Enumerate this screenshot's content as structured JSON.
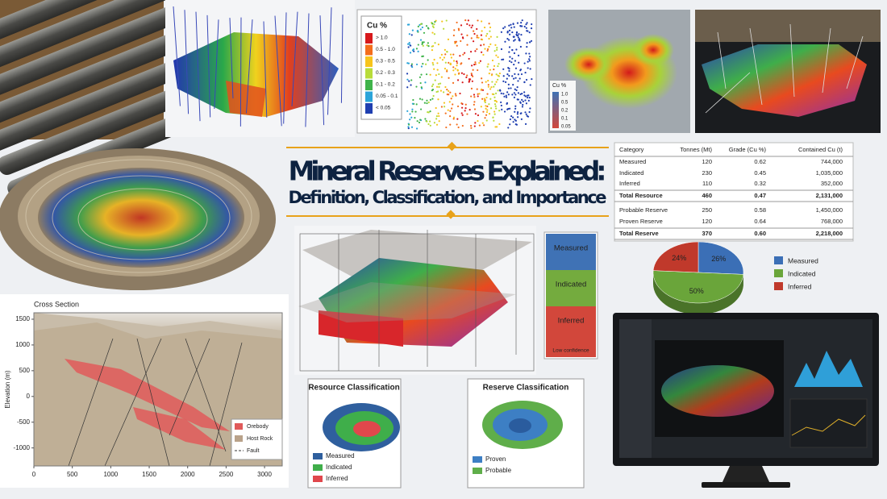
{
  "title": "Mineral Reserves Explained:",
  "subtitle": "Definition, Classification, and Importance",
  "grade_legend": {
    "title": "Cu %",
    "items": [
      {
        "label": "> 1.0",
        "color": "#d7191c"
      },
      {
        "label": "0.5 - 1.0",
        "color": "#f46d1b"
      },
      {
        "label": "0.3 - 0.5",
        "color": "#f7c41b"
      },
      {
        "label": "0.2 - 0.3",
        "color": "#b8dc3a"
      },
      {
        "label": "0.1 - 0.2",
        "color": "#3fb34a"
      },
      {
        "label": "0.05 - 0.1",
        "color": "#2ba4d9"
      },
      {
        "label": "< 0.05",
        "color": "#1f3fb0"
      }
    ]
  },
  "map_legend": {
    "title": "Cu %",
    "items": [
      "1.0",
      "0.5",
      "0.2",
      "0.1",
      "0.05"
    ]
  },
  "table": {
    "header": [
      "Category",
      "Tonnes (Mt)",
      "Grade (Cu %)",
      "Contained Cu (t)"
    ],
    "rows": [
      [
        "Measured",
        "120",
        "0.62",
        "744,000"
      ],
      [
        "Indicated",
        "230",
        "0.45",
        "1,035,000"
      ],
      [
        "Inferred",
        "110",
        "0.32",
        "352,000"
      ],
      [
        "Total Resource",
        "460",
        "0.47",
        "2,131,000"
      ],
      [
        "Probable Reserve",
        "250",
        "0.58",
        "1,450,000"
      ],
      [
        "Proven Reserve",
        "120",
        "0.64",
        "768,000"
      ],
      [
        "Total Reserve",
        "370",
        "0.60",
        "2,218,000"
      ]
    ]
  },
  "pie": {
    "type": "pie",
    "categories": [
      "Measured",
      "Indicated",
      "Inferred"
    ],
    "values": [
      26,
      50,
      24
    ],
    "value_labels": [
      "26%",
      "50%",
      "24%"
    ],
    "colors": [
      "#3b6fb6",
      "#6aa53a",
      "#c0392b"
    ]
  },
  "confidence": {
    "levels": [
      "Measured",
      "Indicated",
      "Inferred"
    ],
    "colors": [
      "#3f72b5",
      "#74ab3e",
      "#d2473b"
    ],
    "note": "Low confidence"
  },
  "cross_section": {
    "type": "area",
    "title": "Cross Section",
    "ylabel": "Elevation (m)",
    "xlim": [
      0,
      3230
    ],
    "ylim": [
      -1350,
      1625
    ],
    "xticks": [
      0,
      500,
      1000,
      1500,
      2000,
      2500,
      3000
    ],
    "yticks": [
      1500,
      1000,
      500,
      0,
      -500,
      -1000
    ],
    "legend": [
      {
        "name": "Orebody",
        "color": "#e05a5a"
      },
      {
        "name": "Host Rock",
        "color": "#b9a28a"
      },
      {
        "name": "Fault",
        "color": "#333333"
      }
    ]
  },
  "resource_classification": {
    "title": "Resource Classification",
    "legend": [
      "Measured",
      "Indicated",
      "Inferred"
    ],
    "colors": [
      "#2f5f9e",
      "#3fae4a",
      "#e0474c"
    ]
  },
  "reserve_classification": {
    "title": "Reserve Classification",
    "legend": [
      "Proven",
      "Probable"
    ],
    "colors": [
      "#3d7fc4",
      "#5fae4a"
    ]
  }
}
